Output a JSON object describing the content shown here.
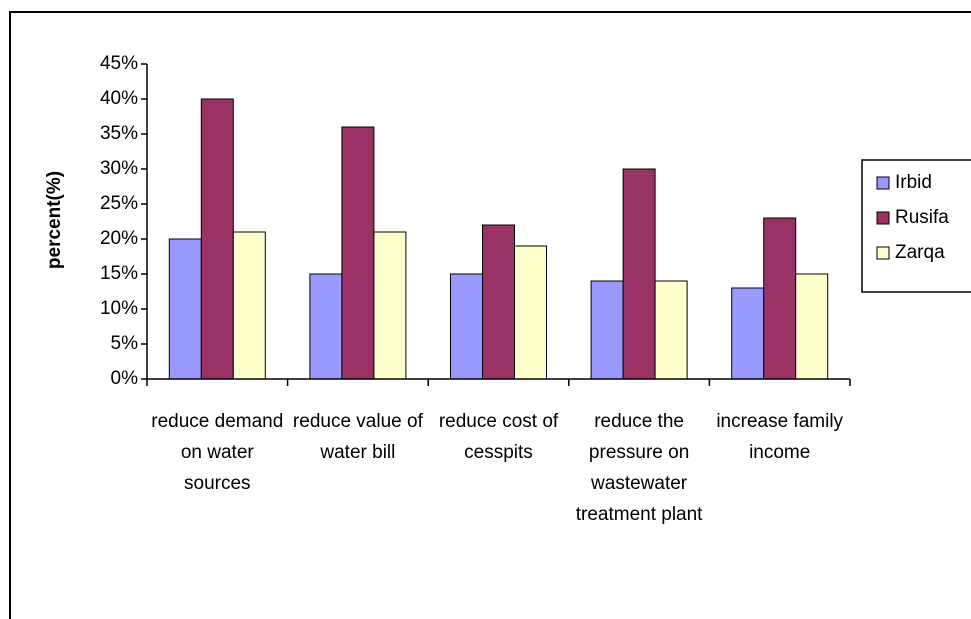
{
  "chart_data": {
    "type": "bar",
    "y_label": "percent(%)",
    "categories": [
      "reduce demand on water sources",
      "reduce value of water bill",
      "reduce cost of cesspits",
      "reduce the pressure on wastewater treatment plant",
      "increase family income"
    ],
    "series": [
      {
        "name": "Irbid",
        "color": "#9999ff",
        "values": [
          20,
          15,
          15,
          14,
          13
        ]
      },
      {
        "name": "Rusifa",
        "color": "#993366",
        "values": [
          40,
          36,
          22,
          30,
          23
        ]
      },
      {
        "name": "Zarqa",
        "color": "#ffffcc",
        "values": [
          21,
          21,
          19,
          14,
          15
        ]
      }
    ],
    "ylim": [
      0,
      45
    ],
    "yticks": [
      {
        "value": 0,
        "label": "0%"
      },
      {
        "value": 5,
        "label": "5%"
      },
      {
        "value": 10,
        "label": "10%"
      },
      {
        "value": 15,
        "label": "15%"
      },
      {
        "value": 20,
        "label": "20%"
      },
      {
        "value": 25,
        "label": "25%"
      },
      {
        "value": 30,
        "label": "30%"
      },
      {
        "value": 35,
        "label": "35%"
      },
      {
        "value": 40,
        "label": "40%"
      },
      {
        "value": 45,
        "label": "45%"
      }
    ],
    "legend": "right"
  }
}
